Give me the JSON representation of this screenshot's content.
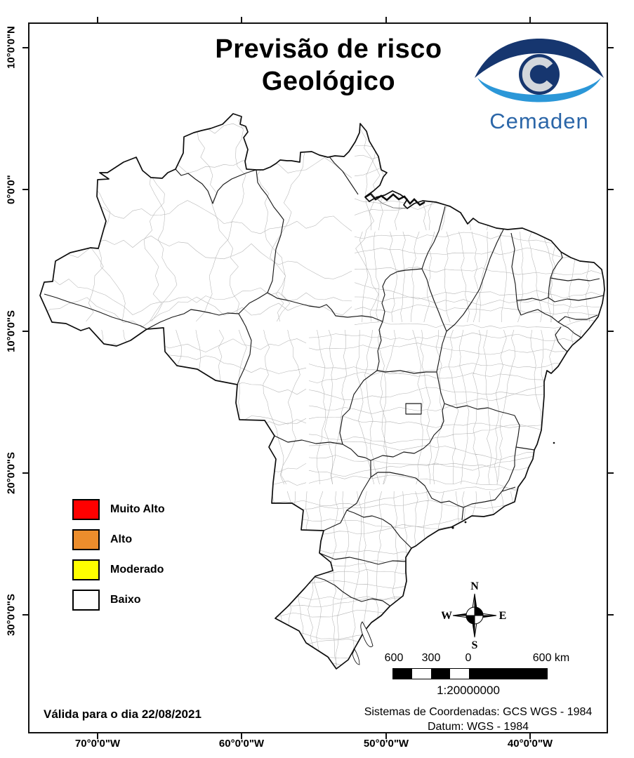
{
  "title": {
    "line1": "Previsão de risco",
    "line2": "Geológico"
  },
  "logo": {
    "name": "Cemaden"
  },
  "legend": {
    "items": [
      {
        "label": "Muito Alto",
        "color": "#ff0000"
      },
      {
        "label": "Alto",
        "color": "#ec8d2c"
      },
      {
        "label": "Moderado",
        "color": "#ffff00"
      },
      {
        "label": "Baixo",
        "color": "#ffffff"
      }
    ]
  },
  "compass": {
    "north": "N",
    "south": "S",
    "east": "E",
    "west": "W"
  },
  "scale_bar": {
    "tick_labels": [
      "600",
      "300",
      "0",
      "600 km"
    ],
    "ratio": "1:20000000"
  },
  "validity_text": "Válida para o dia 22/08/2021",
  "crs": {
    "line1": "Sistemas de Coordenadas: GCS WGS - 1984",
    "line2": "Datum: WGS - 1984"
  },
  "axes": {
    "latitude_labels": [
      "10°0'0\"N",
      "0°0'0\"",
      "10°0'0\"S",
      "20°0'0\"S",
      "30°0'0\"S"
    ],
    "longitude_labels": [
      "70°0'0\"W",
      "60°0'0\"W",
      "50°0'0\"W",
      "40°0'0\"W"
    ]
  }
}
